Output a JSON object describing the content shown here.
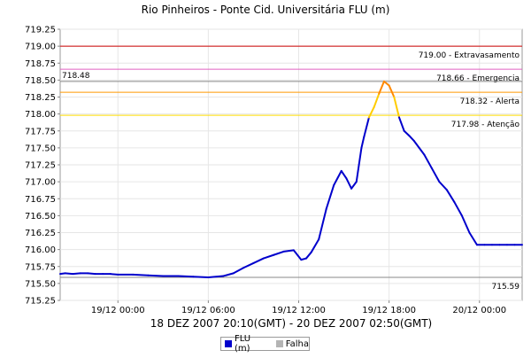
{
  "chart_data": {
    "type": "line",
    "title": "Rio Pinheiros - Ponte Cid. Universitária FLU (m)",
    "xlabel": "18 DEZ 2007 20:10(GMT) - 20 DEZ 2007 02:50(GMT)",
    "ylabel": "",
    "ylim": [
      715.25,
      719.25
    ],
    "xlim": [
      "2007-12-18 20:10",
      "2007-12-20 02:50"
    ],
    "x_ticks": [
      {
        "x": "2007-12-19 00:00",
        "label": "19/12 00:00"
      },
      {
        "x": "2007-12-19 06:00",
        "label": "19/12 06:00"
      },
      {
        "x": "2007-12-19 12:00",
        "label": "19/12 12:00"
      },
      {
        "x": "2007-12-19 18:00",
        "label": "19/12 18:00"
      },
      {
        "x": "2007-12-20 00:00",
        "label": "20/12 00:00"
      }
    ],
    "y_ticks": [
      "715.25",
      "715.50",
      "715.75",
      "716.00",
      "716.25",
      "716.50",
      "716.75",
      "717.00",
      "717.25",
      "717.50",
      "717.75",
      "718.00",
      "718.25",
      "718.50",
      "718.75",
      "719.00",
      "719.25"
    ],
    "grid": true,
    "legend_position": "bottom",
    "legend": [
      {
        "name": "FLU (m)",
        "color": "#0000cc"
      },
      {
        "name": "Falha",
        "color": "#b4b4b4"
      }
    ],
    "thresholds": [
      {
        "value": 719.0,
        "label": "719.00 - Extravasamento",
        "color": "#cc0000"
      },
      {
        "value": 718.66,
        "label": "718.66 - Emergencia",
        "color": "#e060c0"
      },
      {
        "value": 718.32,
        "label": "718.32 - Alerta",
        "color": "#ff9900"
      },
      {
        "value": 717.98,
        "label": "717.98 - Atenção",
        "color": "#ffdd00"
      },
      {
        "value": 715.59,
        "label": "715.59",
        "color": "#888888"
      }
    ],
    "max_marker": {
      "value": 718.48,
      "label": "718.48",
      "color": "#888888"
    },
    "series": [
      {
        "name": "FLU (m)",
        "color": "#0000cc",
        "segment_colors": [
          {
            "above": 718.32,
            "color": "#ff8800"
          },
          {
            "above": 717.98,
            "color": "#ffcc00"
          }
        ],
        "x": [
          "2007-12-18 20:10",
          "2007-12-18 20:30",
          "2007-12-18 21:00",
          "2007-12-18 21:30",
          "2007-12-18 22:00",
          "2007-12-18 22:30",
          "2007-12-18 23:00",
          "2007-12-18 23:30",
          "2007-12-19 00:00",
          "2007-12-19 01:00",
          "2007-12-19 02:00",
          "2007-12-19 03:00",
          "2007-12-19 04:00",
          "2007-12-19 05:00",
          "2007-12-19 06:00",
          "2007-12-19 07:00",
          "2007-12-19 07:40",
          "2007-12-19 08:20",
          "2007-12-19 09:00",
          "2007-12-19 09:40",
          "2007-12-19 10:20",
          "2007-12-19 11:00",
          "2007-12-19 11:40",
          "2007-12-19 12:10",
          "2007-12-19 12:30",
          "2007-12-19 12:50",
          "2007-12-19 13:20",
          "2007-12-19 13:50",
          "2007-12-19 14:20",
          "2007-12-19 14:50",
          "2007-12-19 15:10",
          "2007-12-19 15:30",
          "2007-12-19 15:50",
          "2007-12-19 16:00",
          "2007-12-19 16:10",
          "2007-12-19 16:20",
          "2007-12-19 16:40",
          "2007-12-19 17:00",
          "2007-12-19 17:20",
          "2007-12-19 17:40",
          "2007-12-19 18:00",
          "2007-12-19 18:20",
          "2007-12-19 18:40",
          "2007-12-19 19:00",
          "2007-12-19 19:20",
          "2007-12-19 19:40",
          "2007-12-19 20:00",
          "2007-12-19 20:20",
          "2007-12-19 20:50",
          "2007-12-19 21:20",
          "2007-12-19 21:50",
          "2007-12-19 22:20",
          "2007-12-19 22:50",
          "2007-12-19 23:20",
          "2007-12-19 23:50",
          "2007-12-20 00:20",
          "2007-12-20 00:50",
          "2007-12-20 01:20",
          "2007-12-20 01:50",
          "2007-12-20 02:20",
          "2007-12-20 02:50"
        ],
        "values": [
          715.64,
          715.65,
          715.64,
          715.65,
          715.65,
          715.64,
          715.64,
          715.64,
          715.63,
          715.63,
          715.62,
          715.61,
          715.61,
          715.6,
          715.59,
          715.61,
          715.65,
          715.73,
          715.8,
          715.87,
          715.92,
          715.97,
          715.99,
          715.85,
          715.87,
          715.96,
          716.15,
          716.6,
          716.95,
          717.16,
          717.05,
          716.9,
          717.0,
          717.25,
          717.5,
          717.66,
          717.95,
          718.1,
          718.3,
          718.48,
          718.42,
          718.25,
          717.95,
          717.75,
          717.68,
          717.6,
          717.5,
          717.4,
          717.2,
          717.0,
          716.88,
          716.7,
          716.5,
          716.25,
          716.07,
          716.07,
          716.07,
          716.07,
          716.07,
          716.07,
          716.07
        ]
      }
    ]
  }
}
